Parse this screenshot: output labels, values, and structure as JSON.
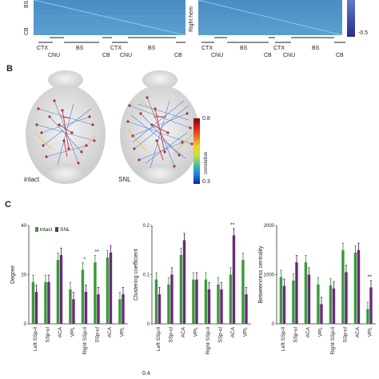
{
  "panel_a": {
    "left_y_labels": [
      "BS",
      "CB"
    ],
    "right_y_label": "Right hem",
    "colorbar_tick": "-0.5",
    "x_labels": [
      "CTX",
      "CNU",
      "BS",
      "CB",
      "CTX",
      "CNU",
      "BS",
      "CB"
    ]
  },
  "panel_b": {
    "letter": "B",
    "left_label": "intact",
    "right_label": "SNL",
    "colorbar_ticks": [
      "0.8",
      "0.3"
    ],
    "colorbar_title": "correlation"
  },
  "panel_c": {
    "letter": "C",
    "legend": [
      "intact",
      "SNL"
    ],
    "colors": {
      "intact": "#3a9a3a",
      "snl": "#6a2a7a",
      "error": "#333333"
    },
    "chart_data": [
      {
        "type": "bar",
        "ylabel": "Degree",
        "ylim": [
          0,
          40
        ],
        "yticks": [
          "40",
          "20",
          "0"
        ],
        "categories": [
          "Left SSp-ll",
          "SSp-ul",
          "ACA",
          "VPL",
          "Right SSp-ll",
          "SSp-ul",
          "ACA",
          "VPL"
        ],
        "series": [
          {
            "name": "intact",
            "values": [
              17,
              17,
              26,
              14,
              22,
              25,
              27,
              10
            ]
          },
          {
            "name": "SNL",
            "values": [
              13,
              17,
              28,
              10,
              13,
              12,
              29,
              12
            ]
          }
        ],
        "annotations": [
          "",
          "",
          "",
          "",
          "*",
          "**",
          "",
          ""
        ]
      },
      {
        "type": "bar",
        "ylabel": "Clustering coefficient",
        "ylim": [
          0,
          0.2
        ],
        "yticks": [
          "0.2",
          "0.1",
          "0"
        ],
        "categories": [
          "Left SSp-ll",
          "SSp-ul",
          "ACA",
          "VPL",
          "Right SSp-ll",
          "SSp-ul",
          "ACA",
          "VPL"
        ],
        "series": [
          {
            "name": "intact",
            "values": [
              0.09,
              0.08,
              0.14,
              0.09,
              0.09,
              0.08,
              0.1,
              0.13
            ]
          },
          {
            "name": "SNL",
            "values": [
              0.06,
              0.1,
              0.17,
              0.09,
              0.07,
              0.07,
              0.18,
              0.06
            ]
          }
        ],
        "annotations": [
          "",
          "",
          "",
          "",
          "",
          "",
          "**",
          ""
        ]
      },
      {
        "type": "bar",
        "ylabel": "Betweenness centrality",
        "ylim": [
          0,
          2000
        ],
        "yticks": [
          "2000",
          "1000",
          "0"
        ],
        "categories": [
          "Left SSp-ll",
          "SSp-ul",
          "ACA",
          "VPL",
          "Right SSp-ll",
          "SSp-ul",
          "ACA",
          "VPL"
        ],
        "series": [
          {
            "name": "intact",
            "values": [
              950,
              880,
              1250,
              800,
              780,
              1500,
              1450,
              300
            ]
          },
          {
            "name": "SNL",
            "values": [
              770,
              1250,
              1000,
              400,
              720,
              1050,
              1500,
              740
            ]
          }
        ],
        "annotations": [
          "",
          "",
          "",
          "",
          "",
          "",
          "",
          "**"
        ]
      }
    ]
  },
  "panel_d": {
    "tick": "0.4"
  }
}
